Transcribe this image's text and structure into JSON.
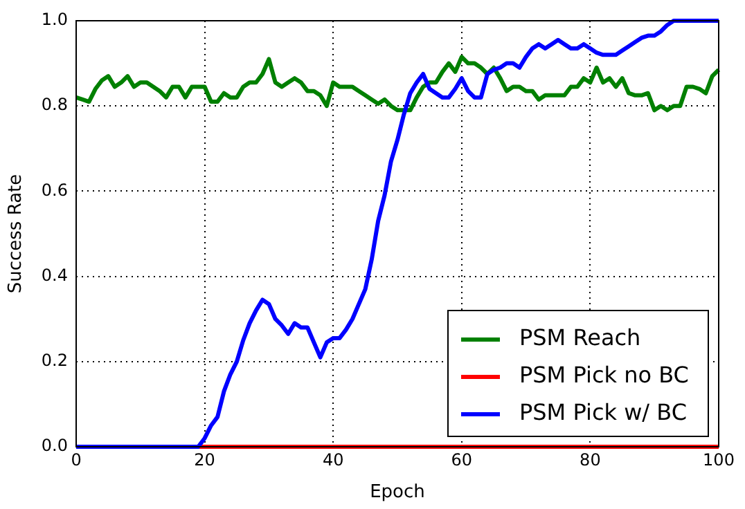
{
  "chart_data": {
    "type": "line",
    "xlabel": "Epoch",
    "ylabel": "Success Rate",
    "x": [
      0,
      1,
      2,
      3,
      4,
      5,
      6,
      7,
      8,
      9,
      10,
      11,
      12,
      13,
      14,
      15,
      16,
      17,
      18,
      19,
      20,
      21,
      22,
      23,
      24,
      25,
      26,
      27,
      28,
      29,
      30,
      31,
      32,
      33,
      34,
      35,
      36,
      37,
      38,
      39,
      40,
      41,
      42,
      43,
      44,
      45,
      46,
      47,
      48,
      49,
      50,
      51,
      52,
      53,
      54,
      55,
      56,
      57,
      58,
      59,
      60,
      61,
      62,
      63,
      64,
      65,
      66,
      67,
      68,
      69,
      70,
      71,
      72,
      73,
      74,
      75,
      76,
      77,
      78,
      79,
      80,
      81,
      82,
      83,
      84,
      85,
      86,
      87,
      88,
      89,
      90,
      91,
      92,
      93,
      94,
      95,
      96,
      97,
      98,
      99,
      100
    ],
    "series": [
      {
        "name": "PSM Reach",
        "color": "#008000",
        "values": [
          0.82,
          0.815,
          0.81,
          0.84,
          0.86,
          0.87,
          0.845,
          0.855,
          0.87,
          0.845,
          0.855,
          0.855,
          0.845,
          0.835,
          0.82,
          0.845,
          0.845,
          0.82,
          0.845,
          0.845,
          0.845,
          0.81,
          0.81,
          0.83,
          0.82,
          0.82,
          0.845,
          0.855,
          0.855,
          0.875,
          0.91,
          0.855,
          0.845,
          0.855,
          0.865,
          0.855,
          0.835,
          0.835,
          0.825,
          0.8,
          0.855,
          0.845,
          0.845,
          0.845,
          0.835,
          0.825,
          0.815,
          0.805,
          0.815,
          0.8,
          0.79,
          0.79,
          0.79,
          0.82,
          0.845,
          0.855,
          0.855,
          0.88,
          0.9,
          0.88,
          0.915,
          0.9,
          0.9,
          0.89,
          0.875,
          0.89,
          0.865,
          0.835,
          0.845,
          0.845,
          0.835,
          0.835,
          0.815,
          0.825,
          0.825,
          0.825,
          0.825,
          0.845,
          0.845,
          0.865,
          0.855,
          0.89,
          0.855,
          0.865,
          0.845,
          0.865,
          0.83,
          0.825,
          0.825,
          0.83,
          0.79,
          0.8,
          0.79,
          0.8,
          0.8,
          0.845,
          0.845,
          0.84,
          0.83,
          0.87,
          0.885
        ]
      },
      {
        "name": "PSM Pick no BC",
        "color": "#ff0000",
        "values": [
          null,
          null,
          null,
          null,
          null,
          null,
          null,
          null,
          null,
          null,
          null,
          null,
          null,
          null,
          null,
          null,
          null,
          0,
          0,
          0,
          0,
          0,
          0,
          0,
          0,
          0,
          0,
          0,
          0,
          0,
          0,
          0,
          0,
          0,
          0,
          0,
          0,
          0,
          0,
          0,
          0,
          0,
          0,
          0,
          0,
          0,
          0,
          0,
          0,
          0,
          0,
          0,
          0,
          0,
          0,
          0,
          0,
          0,
          0,
          0,
          0,
          0,
          0,
          0,
          0,
          0,
          0,
          0,
          0,
          0,
          0,
          0,
          0,
          0,
          0,
          0,
          0,
          0,
          0,
          0,
          0,
          0,
          0,
          0,
          0,
          0,
          0,
          0,
          0,
          0,
          0,
          0,
          0,
          0,
          0,
          0,
          0,
          0,
          0,
          0,
          0
        ]
      },
      {
        "name": "PSM Pick w/ BC",
        "color": "#0000ff",
        "values": [
          0,
          0,
          0,
          0,
          0,
          0,
          0,
          0,
          0,
          0,
          0,
          0,
          0,
          0,
          0,
          0,
          0,
          0,
          0,
          0,
          0.02,
          0.05,
          0.07,
          0.13,
          0.17,
          0.2,
          0.25,
          0.29,
          0.32,
          0.345,
          0.335,
          0.3,
          0.285,
          0.265,
          0.29,
          0.28,
          0.28,
          0.245,
          0.21,
          0.245,
          0.255,
          0.255,
          0.275,
          0.3,
          0.335,
          0.37,
          0.44,
          0.53,
          0.59,
          0.67,
          0.72,
          0.78,
          0.83,
          0.855,
          0.875,
          0.84,
          0.83,
          0.82,
          0.82,
          0.84,
          0.865,
          0.835,
          0.82,
          0.82,
          0.875,
          0.885,
          0.89,
          0.9,
          0.9,
          0.89,
          0.915,
          0.935,
          0.945,
          0.935,
          0.945,
          0.955,
          0.945,
          0.935,
          0.935,
          0.945,
          0.935,
          0.925,
          0.92,
          0.92,
          0.92,
          0.93,
          0.94,
          0.95,
          0.96,
          0.965,
          0.965,
          0.975,
          0.99,
          1,
          1,
          1,
          1,
          1,
          1,
          1,
          1
        ]
      }
    ],
    "xlim": [
      0,
      100
    ],
    "xticks": [
      0,
      20,
      40,
      60,
      80,
      100
    ],
    "ylim": [
      0,
      1
    ],
    "yticks": [
      {
        "value": 0,
        "label": "0.0"
      },
      {
        "value": 0.2,
        "label": "0.2"
      },
      {
        "value": 0.4,
        "label": "0.4"
      },
      {
        "value": 0.6,
        "label": "0.6"
      },
      {
        "value": 0.8,
        "label": "0.8"
      },
      {
        "value": 1,
        "label": "1.0"
      }
    ],
    "grid": true,
    "legend": "bottom right",
    "marker": "none",
    "line_style": "solid"
  }
}
